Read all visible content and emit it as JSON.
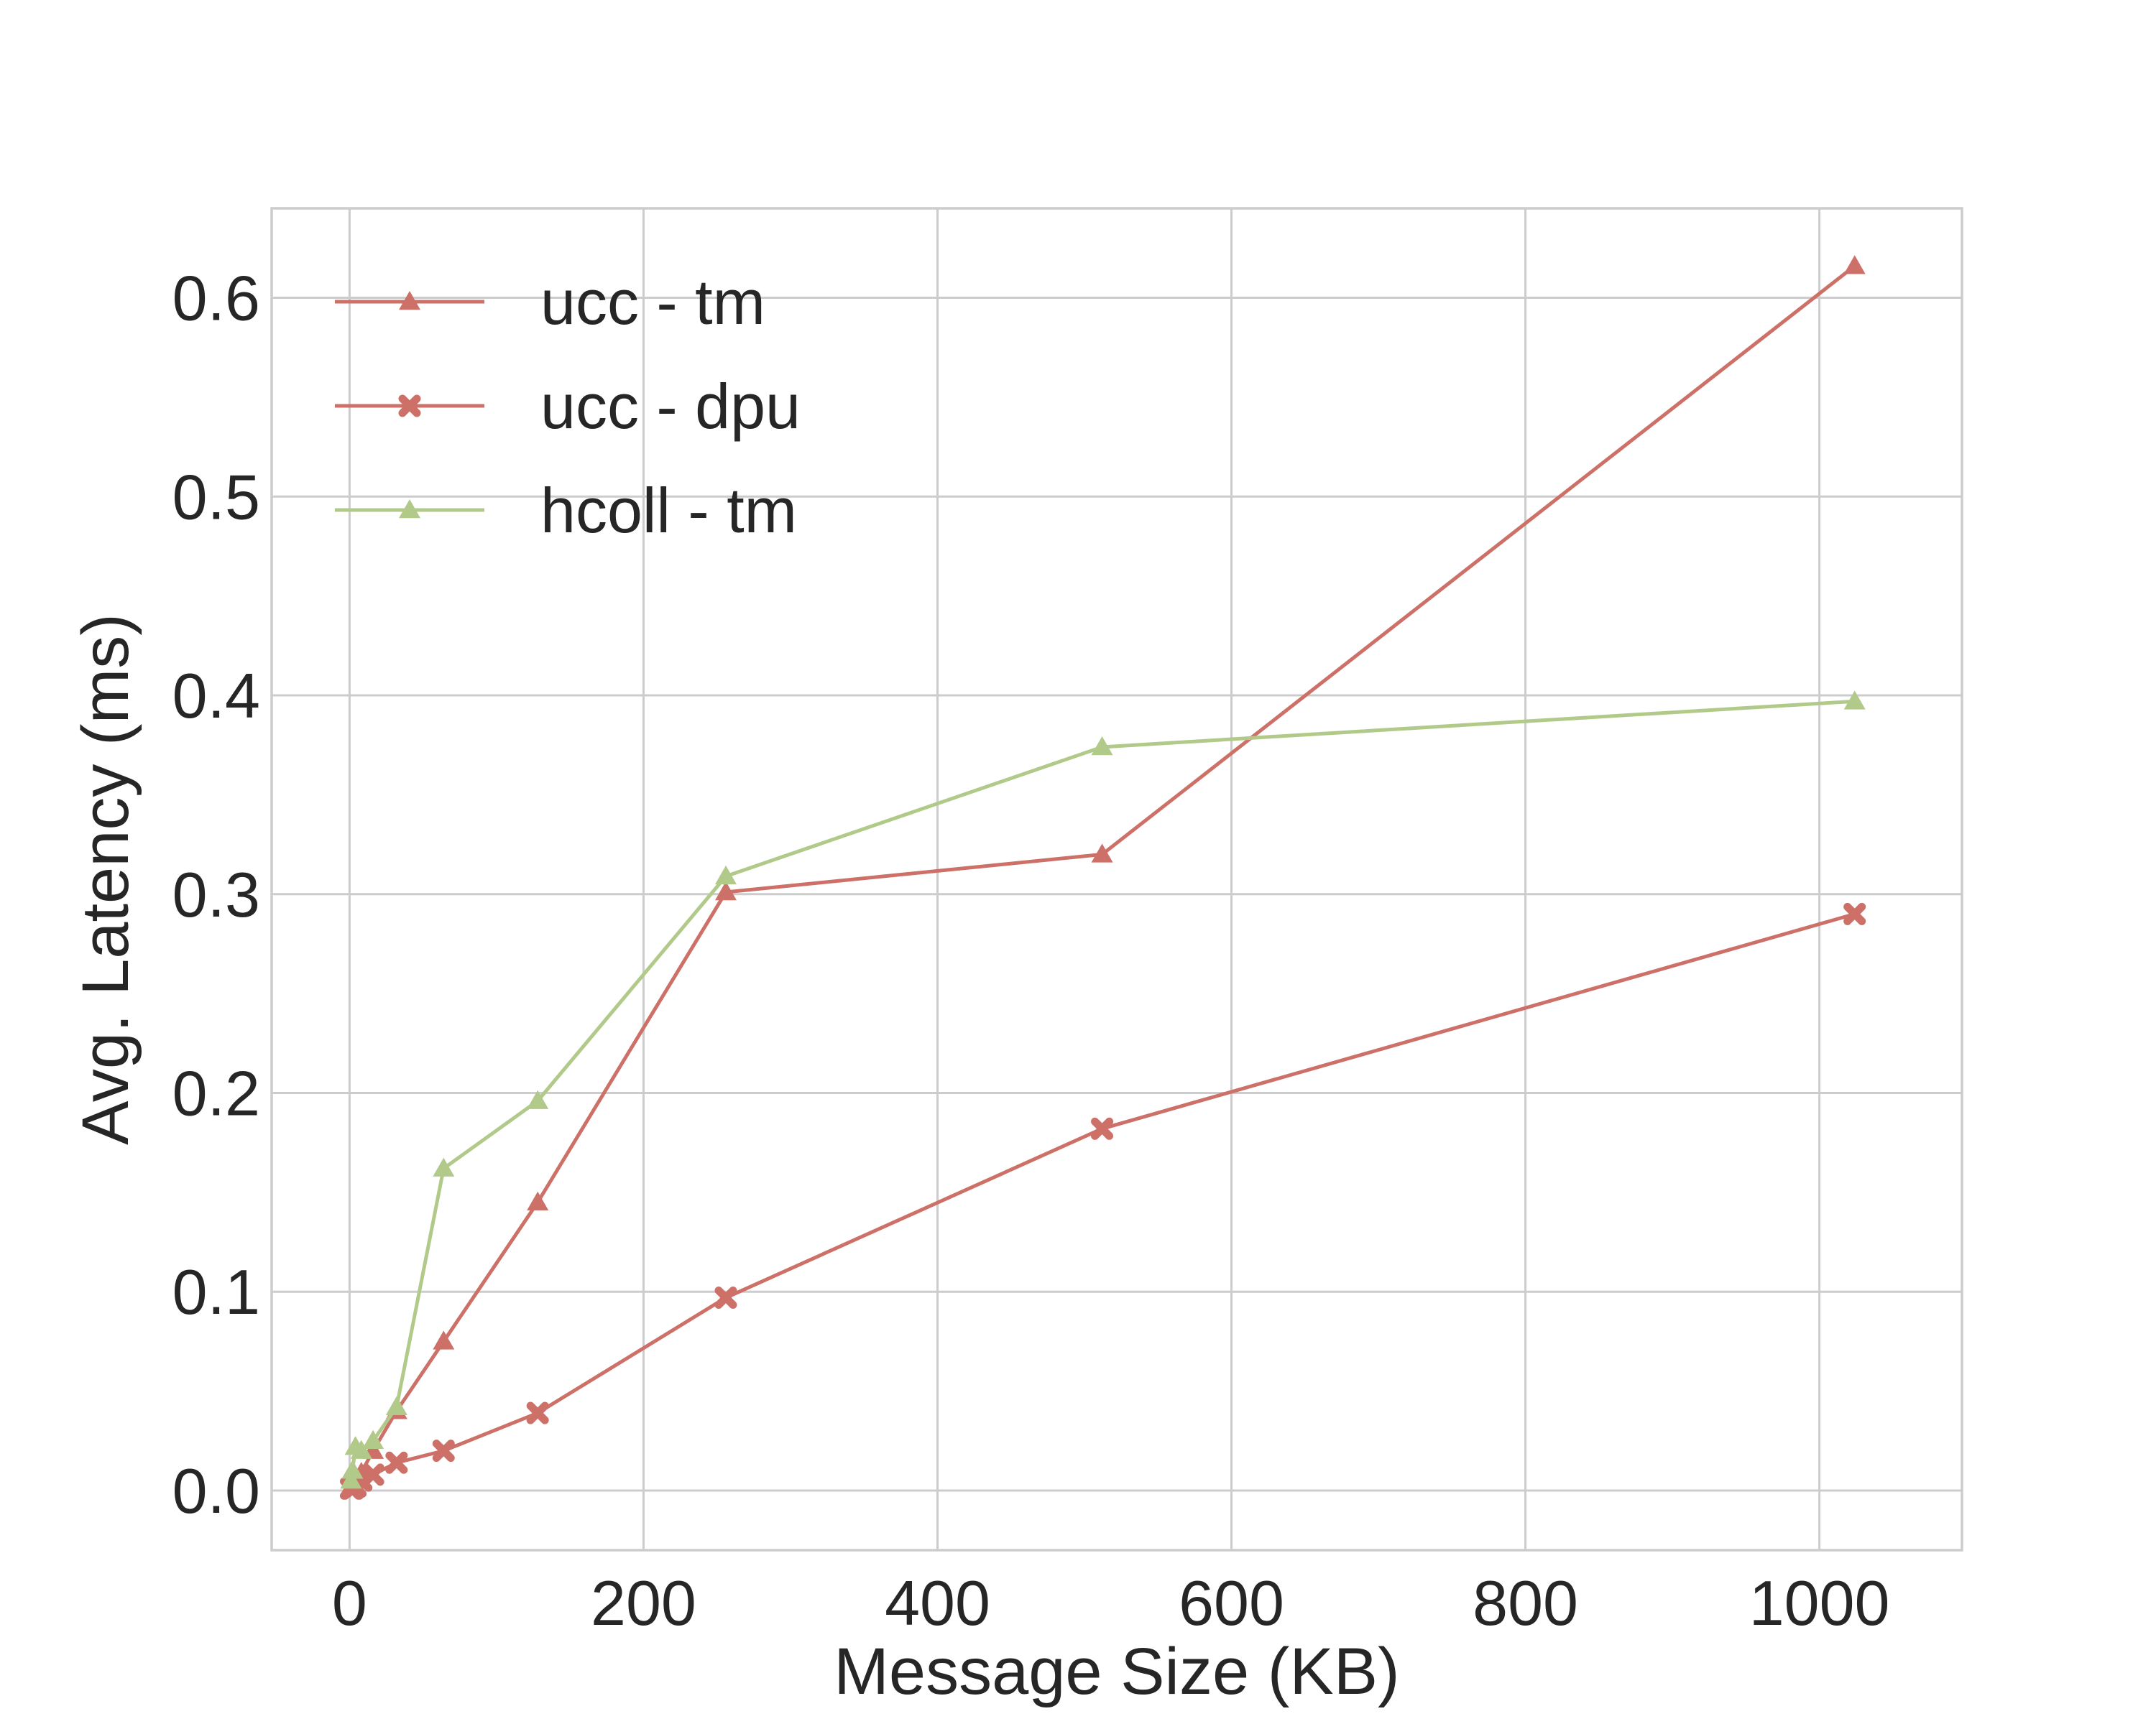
{
  "chart_data": {
    "type": "line",
    "title": "",
    "xlabel": "Message Size (KB)",
    "ylabel": "Avg. Latency (ms)",
    "xlim": [
      -53,
      1097
    ],
    "ylim": [
      -0.03,
      0.645
    ],
    "x_ticks": [
      0,
      200,
      400,
      600,
      800,
      1000
    ],
    "y_ticks": [
      0.0,
      0.1,
      0.2,
      0.3,
      0.4,
      0.5,
      0.6
    ],
    "x_tick_labels": [
      "0",
      "200",
      "400",
      "600",
      "800",
      "1000"
    ],
    "y_tick_labels": [
      "0.0",
      "0.1",
      "0.2",
      "0.3",
      "0.4",
      "0.5",
      "0.6"
    ],
    "grid": true,
    "legend_position": "top-left",
    "series": [
      {
        "name": "ucc - tm",
        "color": "#cd7068",
        "marker": "triangle",
        "x": [
          1,
          2,
          4,
          8,
          16,
          32,
          64,
          128,
          256,
          512,
          1024
        ],
        "y": [
          0.002,
          0.003,
          0.005,
          0.009,
          0.02,
          0.04,
          0.075,
          0.145,
          0.301,
          0.32,
          0.616
        ]
      },
      {
        "name": "ucc - dpu",
        "color": "#cd7068",
        "marker": "x",
        "x": [
          1,
          2,
          4,
          8,
          16,
          32,
          64,
          128,
          256,
          512,
          1024
        ],
        "y": [
          0.001,
          0.001,
          0.002,
          0.005,
          0.008,
          0.014,
          0.02,
          0.039,
          0.097,
          0.182,
          0.29
        ]
      },
      {
        "name": "hcoll - tm",
        "color": "#b1ca8a",
        "marker": "triangle",
        "x": [
          1,
          2,
          4,
          8,
          16,
          32,
          64,
          128,
          256,
          512,
          1024
        ],
        "y": [
          0.005,
          0.01,
          0.022,
          0.02,
          0.025,
          0.042,
          0.162,
          0.196,
          0.309,
          0.374,
          0.397
        ]
      }
    ]
  }
}
